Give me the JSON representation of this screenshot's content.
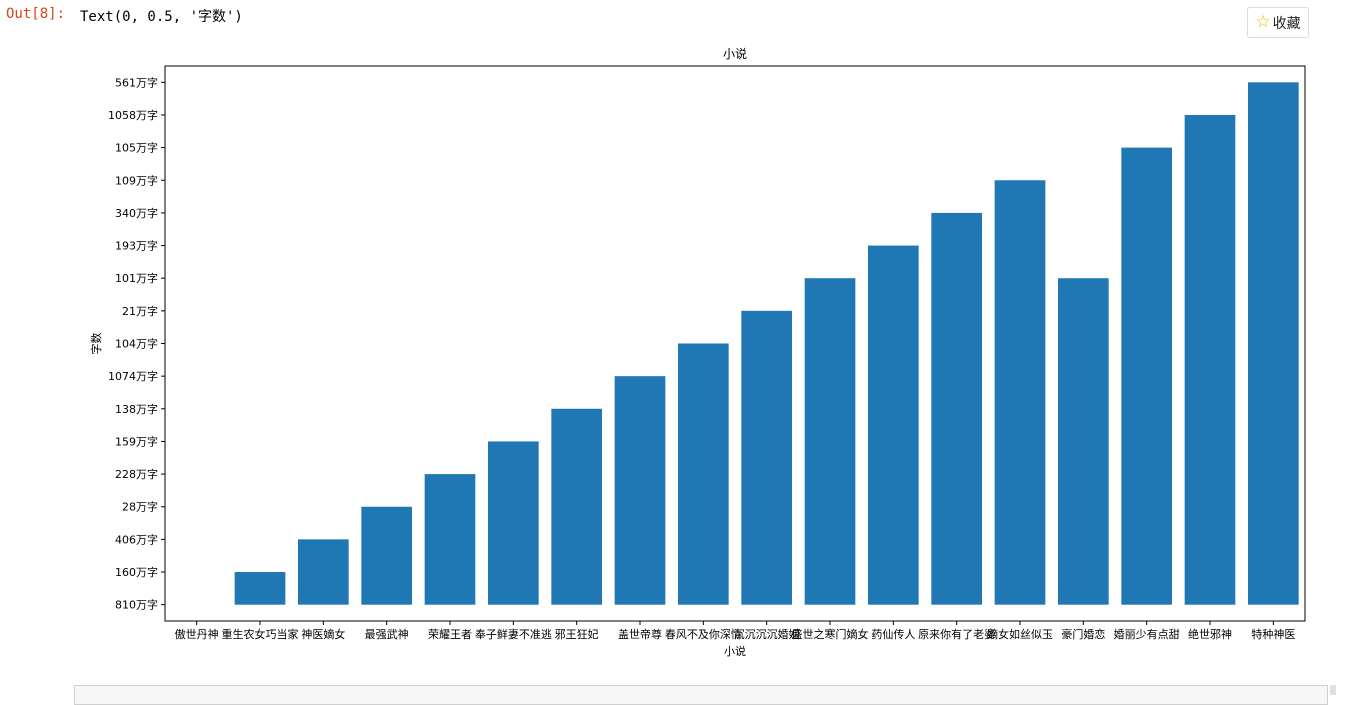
{
  "output": {
    "prompt": "Out[8]:",
    "text": "Text(0, 0.5, '字数')"
  },
  "favorite_button": {
    "icon": "star-icon",
    "label": "收藏"
  },
  "chart_data": {
    "type": "bar",
    "title": "小说",
    "xlabel": "小说",
    "ylabel": "字数",
    "categorical_y_axis": true,
    "y_ticks": [
      "810万字",
      "160万字",
      "406万字",
      "28万字",
      "228万字",
      "159万字",
      "138万字",
      "1074万字",
      "104万字",
      "21万字",
      "101万字",
      "193万字",
      "340万字",
      "109万字",
      "105万字",
      "1058万字",
      "561万字"
    ],
    "categories": [
      "傲世丹神",
      "重生农女巧当家",
      "神医嫡女",
      "最强武神",
      "荣耀王者",
      "奉子鲜妻不准逃",
      "邪王狂妃",
      "盖世帝尊",
      "春风不及你深情",
      "沉沉沉沉婚姻",
      "盛世之寒门嫡女",
      "药仙传人",
      "原来你有了老婆",
      "嫡女如丝似玉",
      "豪门婚恋",
      "婚丽少有点甜",
      "绝世邪神",
      "特种神医"
    ],
    "values": [
      "810万字",
      "160万字",
      "406万字",
      "28万字",
      "228万字",
      "159万字",
      "138万字",
      "1074万字",
      "104万字",
      "21万字",
      "101万字",
      "193万字",
      "340万字",
      "109万字",
      "101万字",
      "105万字",
      "1058万字",
      "561万字"
    ],
    "bar_color": "#1f77b4",
    "grid": false,
    "legend": "none"
  }
}
